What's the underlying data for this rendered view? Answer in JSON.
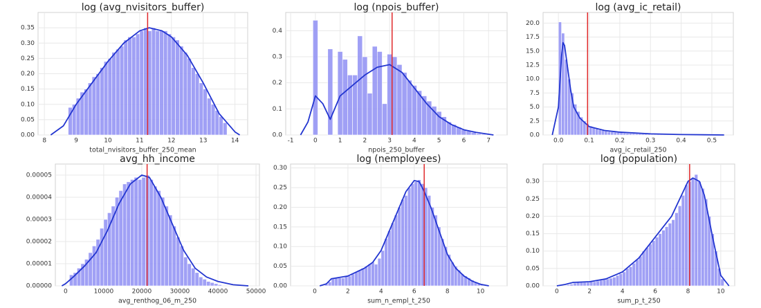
{
  "chart_data": [
    {
      "type": "histogram",
      "title": "log (avg_nvisitors_buffer)",
      "xlabel": "total_nvisitors_buffer_250_mean",
      "bins": [
        8.75,
        8.875,
        9,
        9.125,
        9.25,
        9.375,
        9.5,
        9.625,
        9.75,
        9.875,
        10,
        10.125,
        10.25,
        10.375,
        10.5,
        10.625,
        10.75,
        10.875,
        11,
        11.125,
        11.25,
        11.375,
        11.5,
        11.625,
        11.75,
        11.875,
        12,
        12.125,
        12.25,
        12.375,
        12.5,
        12.625,
        12.75,
        12.875,
        13,
        13.125,
        13.25,
        13.375,
        13.5,
        13.625,
        13.75
      ],
      "counts": [
        0.09,
        0.1,
        0.12,
        0.14,
        0.15,
        0.17,
        0.19,
        0.2,
        0.22,
        0.24,
        0.25,
        0.27,
        0.28,
        0.29,
        0.31,
        0.32,
        0.32,
        0.33,
        0.34,
        0.35,
        0.34,
        0.35,
        0.34,
        0.34,
        0.34,
        0.33,
        0.32,
        0.31,
        0.29,
        0.27,
        0.25,
        0.22,
        0.2,
        0.17,
        0.15,
        0.12,
        0.1,
        0.08,
        0.06,
        0.04
      ],
      "color": "#8f8ff3",
      "kde_x": [
        8.2,
        8.6,
        9,
        9.5,
        10,
        10.5,
        11,
        11.3,
        11.7,
        12,
        12.5,
        13,
        13.5,
        14,
        14.15
      ],
      "kde_values": [
        0,
        0.03,
        0.1,
        0.17,
        0.24,
        0.3,
        0.34,
        0.35,
        0.34,
        0.32,
        0.26,
        0.17,
        0.07,
        0.01,
        0
      ],
      "kde_color": "#2235d0",
      "mean_line": 11.25,
      "mean_color": "#e0282a",
      "xlim": [
        7.8,
        14.4
      ],
      "ylim": [
        0,
        0.4
      ],
      "xticks": [
        8,
        9,
        10,
        11,
        12,
        13,
        14
      ],
      "yticks": [
        {
          "value": 0,
          "label": "0.00"
        },
        0.05,
        {
          "value": 0.1,
          "label": "0.10"
        },
        0.15,
        {
          "value": 0.2,
          "label": "0.20"
        },
        0.25,
        {
          "value": 0.3,
          "label": "0.30"
        },
        0.35
      ],
      "grid": true
    },
    {
      "type": "histogram",
      "title": "log (npois_buffer)",
      "xlabel": "npois_250_buffer",
      "bins": [
        -0.1,
        0.1,
        0.3,
        0.5,
        0.7,
        0.9,
        1.1,
        1.3,
        1.5,
        1.7,
        1.9,
        2.1,
        2.3,
        2.5,
        2.7,
        2.9,
        3.1,
        3.3,
        3.5,
        3.7,
        3.9,
        4.1,
        4.3,
        4.5,
        4.7,
        4.9,
        5.1,
        5.3,
        5.5,
        5.7,
        5.9,
        6.1,
        6.3,
        6.5,
        6.7,
        6.9,
        7.1,
        7.3
      ],
      "counts": [
        0.44,
        0,
        0,
        0.33,
        0,
        0.32,
        0.29,
        0.23,
        0.23,
        0.38,
        0.3,
        0.16,
        0.34,
        0.32,
        0.12,
        0.31,
        0.3,
        0.27,
        0.24,
        0.21,
        0.19,
        0.17,
        0.15,
        0.13,
        0.11,
        0.09,
        0.07,
        0.05,
        0.04,
        0.03,
        0.02,
        0.015,
        0.01,
        0.005,
        0.003,
        0.002,
        0.001
      ],
      "color": "#8f8ff3",
      "kde_x": [
        -0.6,
        -0.3,
        0,
        0.3,
        0.6,
        1,
        1.5,
        2,
        2.5,
        3,
        3.5,
        4,
        4.5,
        5,
        5.5,
        6,
        6.5,
        7.2
      ],
      "kde_values": [
        0,
        0.05,
        0.15,
        0.12,
        0.06,
        0.15,
        0.19,
        0.23,
        0.26,
        0.27,
        0.24,
        0.18,
        0.12,
        0.07,
        0.04,
        0.02,
        0.01,
        0
      ],
      "kde_color": "#2235d0",
      "mean_line": 3.1,
      "mean_color": "#e0282a",
      "xlim": [
        -1.2,
        7.75
      ],
      "ylim": [
        0,
        0.47
      ],
      "xticks": [
        -1,
        0,
        1,
        2,
        3,
        4,
        5,
        6,
        7
      ],
      "yticks": [
        {
          "value": 0,
          "label": "0.0"
        },
        0.1,
        0.2,
        0.3,
        0.4
      ],
      "grid": true
    },
    {
      "type": "histogram",
      "title": "log (avg_ic_retail)",
      "xlabel": "avg_ic_retail_250",
      "bins": [
        0,
        0.01,
        0.02,
        0.03,
        0.04,
        0.05,
        0.06,
        0.07,
        0.08,
        0.09,
        0.1,
        0.11,
        0.12,
        0.13,
        0.14,
        0.15,
        0.16,
        0.17,
        0.18,
        0.19,
        0.2,
        0.21,
        0.22,
        0.23,
        0.24,
        0.25,
        0.26,
        0.27,
        0.28,
        0.29,
        0.3,
        0.31,
        0.32,
        0.33,
        0.34,
        0.35,
        0.36,
        0.37,
        0.38,
        0.39,
        0.4,
        0.41,
        0.42,
        0.43,
        0.44,
        0.45,
        0.46,
        0.47,
        0.48,
        0.49,
        0.5,
        0.51,
        0.52,
        0.53,
        0.54
      ],
      "counts": [
        20.2,
        18.2,
        13.5,
        10,
        7.5,
        5.5,
        4.2,
        3.2,
        2.5,
        2,
        1.6,
        1.3,
        1.1,
        0.9,
        0.8,
        0.7,
        0.6,
        0.55,
        0.5,
        0.45,
        0.4,
        0.35,
        0.3,
        0.28,
        0.25,
        0.22,
        0.2,
        0.18,
        0.16,
        0.14,
        0.12,
        0.11,
        0.1,
        0.09,
        0.08,
        0.07,
        0.06,
        0.06,
        0.05,
        0.05,
        0.04,
        0.04,
        0.03,
        0.03,
        0.03,
        0.02,
        0.02,
        0.02,
        0.02,
        0.01,
        0.01,
        0.01,
        0.01,
        0.01
      ],
      "color": "#8f8ff3",
      "kde_x": [
        -0.02,
        0,
        0.01,
        0.015,
        0.02,
        0.03,
        0.04,
        0.05,
        0.07,
        0.1,
        0.15,
        0.2,
        0.3,
        0.4,
        0.54
      ],
      "kde_values": [
        0,
        5,
        14,
        16.5,
        16,
        12,
        8,
        5,
        3,
        1.5,
        0.8,
        0.5,
        0.2,
        0.08,
        0
      ],
      "kde_color": "#2235d0",
      "mean_line": 0.095,
      "mean_color": "#e0282a",
      "xlim": [
        -0.05,
        0.57
      ],
      "ylim": [
        0,
        21.9
      ],
      "xticks": [
        {
          "value": 0,
          "label": "0.0"
        },
        0.1,
        0.2,
        0.3,
        0.4,
        0.5
      ],
      "yticks": [
        {
          "value": 0,
          "label": "0.0"
        },
        2.5,
        {
          "value": 5,
          "label": "5.0"
        },
        7.5,
        {
          "value": 10,
          "label": "10.0"
        },
        12.5,
        {
          "value": 15,
          "label": "15.0"
        },
        17.5,
        {
          "value": 20,
          "label": "20.0"
        }
      ],
      "grid": true
    },
    {
      "type": "histogram",
      "title": "avg_hh_income",
      "xlabel": "avg_renthog_06_m_250",
      "bins": [
        1000,
        2000,
        3000,
        4000,
        5000,
        6000,
        7000,
        8000,
        9000,
        10000,
        11000,
        12000,
        13000,
        14000,
        15000,
        16000,
        17000,
        18000,
        19000,
        20000,
        21000,
        22000,
        23000,
        24000,
        25000,
        26000,
        27000,
        28000,
        29000,
        30000,
        31000,
        32000,
        33000,
        34000,
        35000,
        36000,
        37000,
        38000,
        39000,
        40000,
        41000
      ],
      "counts": [
        5e-06,
        6e-06,
        8e-06,
        1e-05,
        1.2e-05,
        1.5e-05,
        1.8e-05,
        2.1e-05,
        2.6e-05,
        3e-05,
        3.3e-05,
        3.6e-05,
        4e-05,
        4.3e-05,
        4.6e-05,
        4.7e-05,
        4.8e-05,
        4.9e-05,
        4.8e-05,
        4.9e-05,
        5e-05,
        4.8e-05,
        4.5e-05,
        4.3e-05,
        4e-05,
        3.6e-05,
        3.2e-05,
        2.7e-05,
        2.2e-05,
        1.8e-05,
        1.3e-05,
        1e-05,
        8e-06,
        6e-06,
        4e-06,
        3e-06,
        2e-06,
        1.5e-06,
        1e-06,
        5e-07
      ],
      "color": "#8f8ff3",
      "kde_x": [
        -1000,
        0,
        2000,
        5000,
        8000,
        11000,
        14000,
        17000,
        20000,
        22000,
        25000,
        28000,
        31000,
        34000,
        37000,
        40000,
        44000,
        48000
      ],
      "kde_values": [
        0,
        1e-06,
        4e-06,
        9e-06,
        1.5e-05,
        2.5e-05,
        3.7e-05,
        4.6e-05,
        5e-05,
        4.9e-05,
        4e-05,
        2.8e-05,
        1.6e-05,
        8e-06,
        4e-06,
        2e-06,
        5e-07,
        0
      ],
      "kde_color": "#2235d0",
      "mean_line": 21400,
      "mean_color": "#e0282a",
      "xlim": [
        -2700,
        50900
      ],
      "ylim": [
        0,
        5.5e-05
      ],
      "xticks": [
        0,
        10000,
        20000,
        30000,
        40000,
        50000
      ],
      "yticks": [
        {
          "value": 0,
          "label": "0.00000"
        },
        {
          "value": 1e-05,
          "label": "0.00001"
        },
        {
          "value": 2e-05,
          "label": "0.00002"
        },
        {
          "value": 3e-05,
          "label": "0.00003"
        },
        {
          "value": 4e-05,
          "label": "0.00004"
        },
        {
          "value": 5e-05,
          "label": "0.00005"
        }
      ],
      "grid": true
    },
    {
      "type": "histogram",
      "title": "log (nemployees)",
      "xlabel": "sum_n_empl_t_250",
      "bins": [
        0.6,
        0.8,
        1,
        1.2,
        1.4,
        1.6,
        1.8,
        2,
        2.2,
        2.4,
        2.6,
        2.8,
        3,
        3.2,
        3.4,
        3.6,
        3.8,
        4,
        4.2,
        4.4,
        4.6,
        4.8,
        5,
        5.2,
        5.4,
        5.6,
        5.8,
        6,
        6.2,
        6.4,
        6.6,
        6.8,
        7,
        7.2,
        7.4,
        7.6,
        7.8,
        8,
        8.2,
        8.4,
        8.6,
        8.8,
        9,
        9.2,
        9.4,
        9.6,
        9.8,
        10,
        10.2
      ],
      "counts": [
        0.005,
        0.01,
        0.02,
        0.02,
        0.02,
        0.02,
        0.025,
        0.025,
        0.03,
        0.035,
        0.04,
        0.045,
        0.05,
        0.055,
        0.06,
        0.055,
        0.07,
        0.09,
        0.12,
        0.14,
        0.16,
        0.18,
        0.2,
        0.22,
        0.23,
        0.25,
        0.26,
        0.265,
        0.27,
        0.26,
        0.25,
        0.23,
        0.2,
        0.18,
        0.15,
        0.12,
        0.1,
        0.08,
        0.06,
        0.05,
        0.04,
        0.03,
        0.025,
        0.02,
        0.015,
        0.01,
        0.005,
        0.003
      ],
      "color": "#8f8ff3",
      "kde_x": [
        0.3,
        0.7,
        1,
        2,
        3,
        3.5,
        4,
        4.5,
        5,
        5.5,
        6,
        6.3,
        6.6,
        7,
        7.5,
        8,
        8.5,
        9,
        9.5,
        10,
        10.5
      ],
      "kde_values": [
        0,
        0.005,
        0.018,
        0.025,
        0.045,
        0.06,
        0.09,
        0.14,
        0.19,
        0.24,
        0.268,
        0.265,
        0.24,
        0.2,
        0.14,
        0.08,
        0.045,
        0.025,
        0.012,
        0.004,
        0
      ],
      "kde_color": "#2235d0",
      "mean_line": 6.6,
      "mean_color": "#e0282a",
      "xlim": [
        -1.46,
        11.6
      ],
      "ylim": [
        0,
        0.31
      ],
      "xticks": [
        0,
        2,
        4,
        6,
        8,
        10
      ],
      "yticks": [
        {
          "value": 0,
          "label": "0.00"
        },
        0.05,
        {
          "value": 0.1,
          "label": "0.10"
        },
        0.15,
        {
          "value": 0.2,
          "label": "0.20"
        },
        0.25,
        {
          "value": 0.3,
          "label": "0.30"
        }
      ],
      "grid": true
    },
    {
      "type": "histogram",
      "title": "log (population)",
      "xlabel": "sum_p_t_250",
      "bins": [
        0.6,
        0.8,
        1,
        1.2,
        1.4,
        1.6,
        1.8,
        2,
        2.2,
        2.4,
        2.6,
        2.8,
        3,
        3.2,
        3.4,
        3.6,
        3.8,
        4,
        4.2,
        4.4,
        4.6,
        4.8,
        5,
        5.2,
        5.4,
        5.6,
        5.8,
        6,
        6.2,
        6.4,
        6.6,
        6.8,
        7,
        7.2,
        7.4,
        7.6,
        7.8,
        8,
        8.2,
        8.4,
        8.6,
        8.8,
        9,
        9.2,
        9.4,
        9.6,
        9.8,
        10,
        10.2
      ],
      "counts": [
        0.003,
        0.005,
        0.008,
        0.01,
        0.01,
        0.01,
        0.01,
        0.012,
        0.012,
        0.014,
        0.016,
        0.018,
        0.02,
        0.022,
        0.025,
        0.03,
        0.035,
        0.04,
        0.05,
        0.055,
        0.065,
        0.075,
        0.085,
        0.1,
        0.11,
        0.12,
        0.13,
        0.14,
        0.15,
        0.16,
        0.17,
        0.18,
        0.19,
        0.21,
        0.23,
        0.26,
        0.29,
        0.3,
        0.31,
        0.32,
        0.3,
        0.28,
        0.25,
        0.2,
        0.15,
        0.1,
        0.05,
        0.02
      ],
      "color": "#8f8ff3",
      "kde_x": [
        0,
        0.5,
        1,
        2,
        3,
        4,
        5,
        6,
        7,
        7.5,
        8,
        8.3,
        8.7,
        9,
        9.5,
        10,
        10.5
      ],
      "kde_values": [
        0,
        0.004,
        0.01,
        0.012,
        0.02,
        0.04,
        0.08,
        0.14,
        0.2,
        0.25,
        0.3,
        0.31,
        0.3,
        0.26,
        0.14,
        0.03,
        0
      ],
      "kde_color": "#2235d0",
      "mean_line": 8.1,
      "mean_color": "#e0282a",
      "xlim": [
        -0.84,
        10.85
      ],
      "ylim": [
        0,
        0.35
      ],
      "xticks": [
        0,
        2,
        4,
        6,
        8,
        10
      ],
      "yticks": [
        {
          "value": 0,
          "label": "0.00"
        },
        0.05,
        {
          "value": 0.1,
          "label": "0.10"
        },
        0.15,
        {
          "value": 0.2,
          "label": "0.20"
        },
        0.25,
        {
          "value": 0.3,
          "label": "0.30"
        }
      ],
      "grid": true
    }
  ]
}
